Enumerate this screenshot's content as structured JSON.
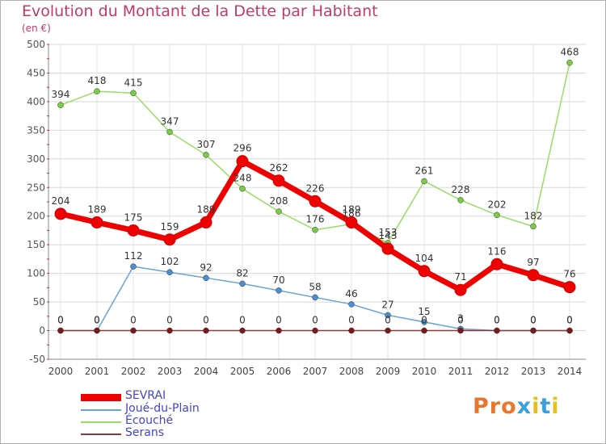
{
  "title": "Evolution du Montant de la Dette par Habitant",
  "subtitle": "(en €)",
  "logo_text": "Proxiti",
  "colors": {
    "title": "#c03a6a",
    "legend_text": "#4444cc",
    "grid": "#d8d8d8"
  },
  "chart_data": {
    "type": "line",
    "x": [
      "2000",
      "2001",
      "2002",
      "2003",
      "2004",
      "2005",
      "2006",
      "2007",
      "2008",
      "2009",
      "2010",
      "2011",
      "2012",
      "2013",
      "2014"
    ],
    "ylim": [
      -50,
      500
    ],
    "yticks": [
      -50,
      0,
      50,
      100,
      150,
      200,
      250,
      300,
      350,
      400,
      450,
      500
    ],
    "grid": true,
    "legend_position": "bottom-left",
    "series": [
      {
        "name": "SEVRAI",
        "color": "#ee0000",
        "point_color": "#ee0000",
        "values": [
          204,
          189,
          175,
          159,
          189,
          296,
          262,
          226,
          189,
          143,
          104,
          71,
          116,
          97,
          76
        ],
        "labels": [
          "204",
          "189",
          "175",
          "159",
          "189",
          "296",
          "262",
          "226",
          "189",
          "143",
          "104",
          "71",
          "116",
          "97",
          "76"
        ]
      },
      {
        "name": "Joué-du-Plain",
        "color": "#6aa3d6",
        "point_color": "#4a8fd0",
        "values": [
          0,
          0,
          112,
          102,
          92,
          82,
          70,
          58,
          46,
          27,
          15,
          3,
          0,
          0,
          0
        ],
        "labels": [
          "0",
          "0",
          "112",
          "102",
          "92",
          "82",
          "70",
          "58",
          "46",
          "27",
          "15",
          "3",
          "0",
          "0",
          "0"
        ]
      },
      {
        "name": "Écouché",
        "color": "#99dd66",
        "point_color": "#7acc44",
        "values": [
          394,
          418,
          415,
          347,
          307,
          248,
          208,
          176,
          186,
          153,
          261,
          228,
          202,
          182,
          468
        ],
        "labels": [
          "394",
          "418",
          "415",
          "347",
          "307",
          "248",
          "208",
          "176",
          "186",
          "153",
          "261",
          "228",
          "202",
          "182",
          "468"
        ]
      },
      {
        "name": "Serans",
        "color": "#8a3a3a",
        "point_color": "#7a1a1a",
        "values": [
          0,
          0,
          0,
          0,
          0,
          0,
          0,
          0,
          0,
          0,
          0,
          0,
          0,
          0,
          0
        ],
        "labels": [
          "0",
          "0",
          "0",
          "0",
          "0",
          "0",
          "0",
          "0",
          "0",
          "0",
          "0",
          "0",
          "0",
          "0",
          "0"
        ]
      }
    ]
  }
}
